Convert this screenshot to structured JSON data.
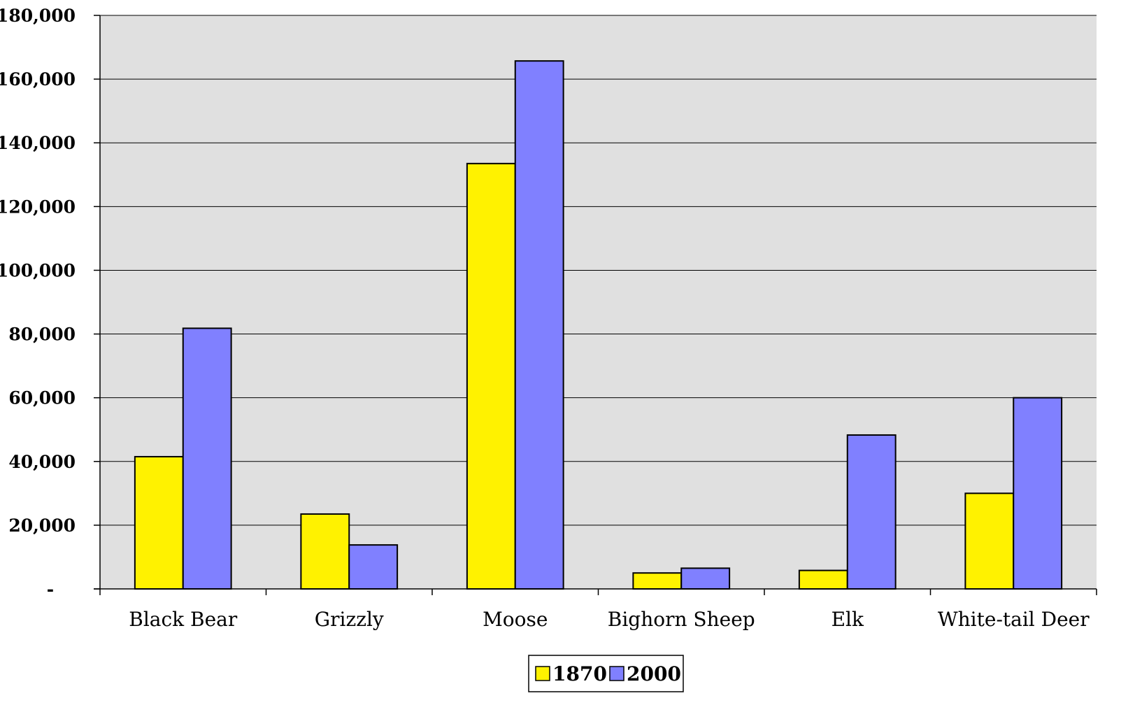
{
  "chart_data": {
    "type": "bar",
    "title": "",
    "xlabel": "",
    "ylabel": "",
    "categories": [
      "Black Bear",
      "Grizzly",
      "Moose",
      "Bighorn Sheep",
      "Elk",
      "White-tail Deer"
    ],
    "series": [
      {
        "name": "1870",
        "values": [
          41500,
          23500,
          133500,
          5000,
          5800,
          30000
        ],
        "color": "#FFF200"
      },
      {
        "name": "2000",
        "values": [
          81800,
          13800,
          165700,
          6500,
          48300,
          60000
        ],
        "color": "#8080FF"
      }
    ],
    "ylim": [
      0,
      180000
    ],
    "yticks": [
      {
        "value": 0,
        "label": "-"
      },
      {
        "value": 20000,
        "label": "20,000"
      },
      {
        "value": 40000,
        "label": "40,000"
      },
      {
        "value": 60000,
        "label": "60,000"
      },
      {
        "value": 80000,
        "label": "80,000"
      },
      {
        "value": 100000,
        "label": "100,000"
      },
      {
        "value": 120000,
        "label": "120,000"
      },
      {
        "value": 140000,
        "label": "140,000"
      },
      {
        "value": 160000,
        "label": "160,000"
      },
      {
        "value": 180000,
        "label": "180,000"
      }
    ],
    "grid": true,
    "legend": "bottom-center",
    "plot_background": "#E0E0E0"
  }
}
